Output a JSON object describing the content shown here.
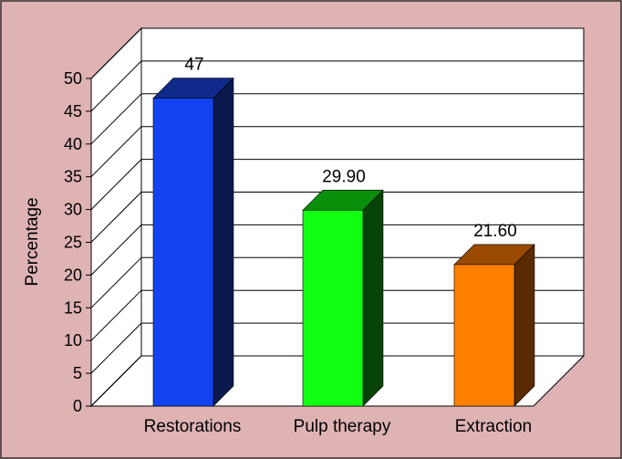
{
  "chart_data": {
    "type": "bar",
    "categories": [
      "Restorations",
      "Pulp therapy",
      "Extraction"
    ],
    "values": [
      47,
      29.9,
      21.6
    ],
    "data_labels": [
      "47",
      "29.90",
      "21.60"
    ],
    "ylabel": "Percentage",
    "xlabel": "",
    "ylim": [
      0,
      50
    ],
    "y_ticks": [
      "0",
      "5",
      "10",
      "15",
      "20",
      "25",
      "30",
      "35",
      "40",
      "45",
      "50"
    ],
    "grid": true,
    "legend": "none",
    "style": "3d",
    "colors": {
      "background": "#dfb3b4",
      "plot_area": "#ffffff",
      "bars": [
        {
          "front": "#1144f0",
          "top": "#0f2a8a",
          "side": "#0a1a4e"
        },
        {
          "front": "#11ff11",
          "top": "#0a8f0a",
          "side": "#064406"
        },
        {
          "front": "#ff7f00",
          "top": "#9a4a00",
          "side": "#5a2a00"
        }
      ]
    }
  }
}
